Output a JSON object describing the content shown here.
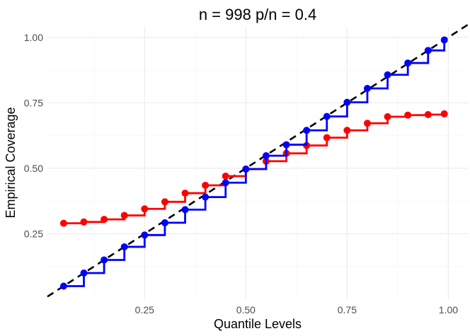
{
  "chart_data": {
    "type": "line",
    "title": "n = 998 p/n = 0.4",
    "xlabel": "Quantile Levels",
    "ylabel": "Empirical Coverage",
    "xlim": [
      0.01,
      1.05
    ],
    "ylim": [
      0.0,
      1.04
    ],
    "x_ticks": [
      0.25,
      0.5,
      0.75,
      1.0
    ],
    "x_tick_labels": [
      "0.25",
      "0.50",
      "0.75",
      "1.00"
    ],
    "y_ticks": [
      0.25,
      0.5,
      0.75,
      1.0
    ],
    "y_tick_labels": [
      "0.25",
      "0.50",
      "0.75",
      "1.00"
    ],
    "grid": true,
    "x": [
      0.05,
      0.1,
      0.15,
      0.2,
      0.25,
      0.3,
      0.35,
      0.4,
      0.45,
      0.5,
      0.55,
      0.6,
      0.65,
      0.7,
      0.75,
      0.8,
      0.85,
      0.9,
      0.95,
      0.99
    ],
    "series": [
      {
        "color": "#ff0000",
        "style": "step",
        "values": [
          0.29,
          0.295,
          0.305,
          0.32,
          0.345,
          0.372,
          0.405,
          0.435,
          0.47,
          0.497,
          0.527,
          0.557,
          0.587,
          0.617,
          0.645,
          0.672,
          0.697,
          0.703,
          0.705,
          0.708
        ]
      },
      {
        "color": "#0000ff",
        "style": "step",
        "values": [
          0.05,
          0.1,
          0.15,
          0.2,
          0.245,
          0.292,
          0.342,
          0.39,
          0.445,
          0.497,
          0.548,
          0.59,
          0.645,
          0.698,
          0.752,
          0.805,
          0.857,
          0.902,
          0.95,
          0.99
        ]
      }
    ],
    "reference_line": {
      "style": "dashed",
      "color": "#000000",
      "slope": 1,
      "intercept": 0
    }
  }
}
